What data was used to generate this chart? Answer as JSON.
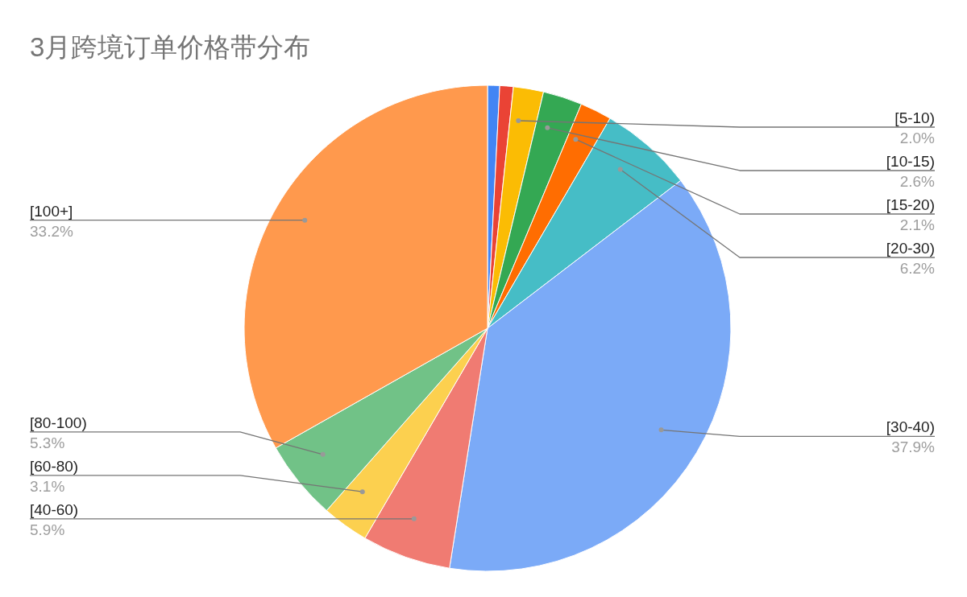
{
  "chart_data": {
    "type": "pie",
    "title": "3月跨境订单价格带分布",
    "categories": [
      null,
      null,
      "[5-10)",
      "[10-15)",
      "[15-20)",
      "[20-30)",
      "[30-40)",
      "[40-60)",
      "[60-80)",
      "[80-100)",
      "[100+]"
    ],
    "values": [
      0.8,
      0.9,
      2.0,
      2.6,
      2.1,
      6.2,
      37.9,
      5.9,
      3.1,
      5.3,
      33.2
    ],
    "value_labels": [
      null,
      null,
      "2.0%",
      "2.6%",
      "2.1%",
      "6.2%",
      "37.9%",
      "5.9%",
      "3.1%",
      "5.3%",
      "33.2%"
    ],
    "colors": [
      "#4285f4",
      "#ea4335",
      "#fbbc04",
      "#34a853",
      "#ff6d01",
      "#46bdc6",
      "#7baaf7",
      "#f07b72",
      "#fcd04f",
      "#71c287",
      "#ff994d"
    ],
    "legend": false
  }
}
